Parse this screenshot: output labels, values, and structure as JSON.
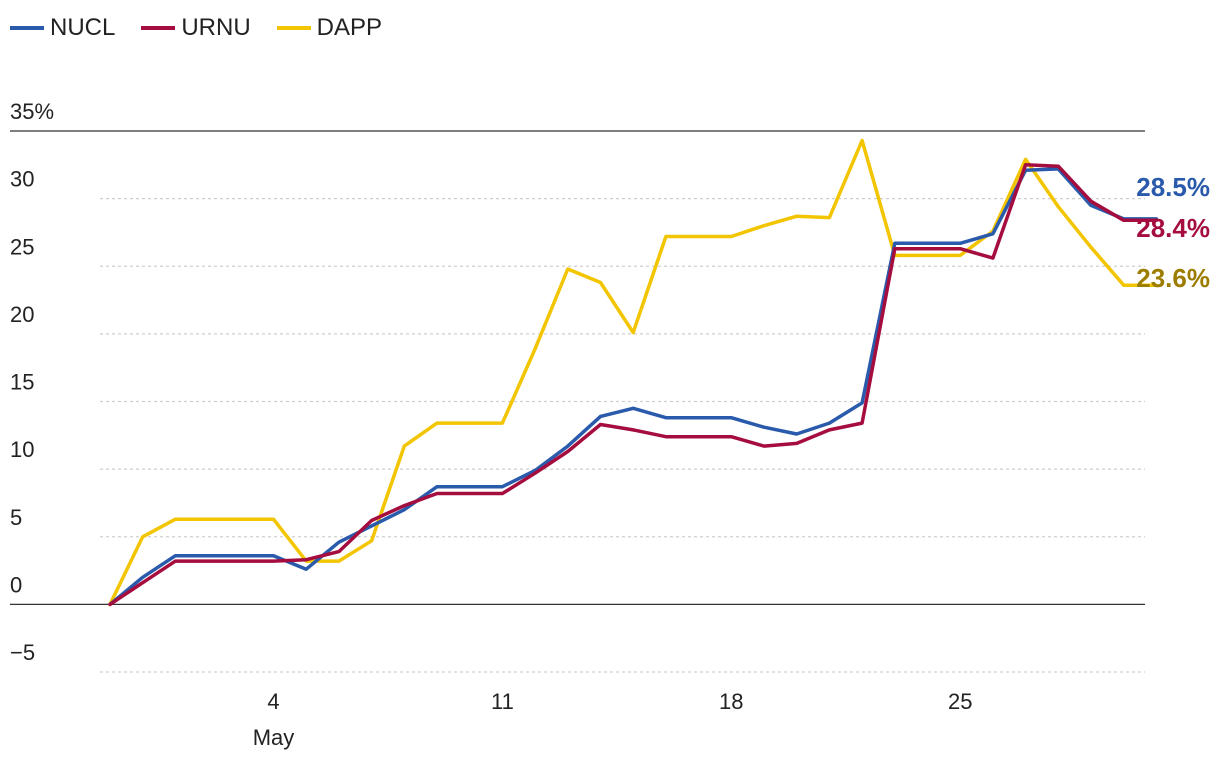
{
  "chart_data": {
    "type": "line",
    "x": [
      "Apr 29",
      "Apr 30",
      "May 1",
      "May 2",
      "May 3",
      "May 4",
      "May 5",
      "May 6",
      "May 7",
      "May 8",
      "May 9",
      "May 10",
      "May 11",
      "May 12",
      "May 13",
      "May 14",
      "May 15",
      "May 16",
      "May 17",
      "May 18",
      "May 19",
      "May 20",
      "May 21",
      "May 22",
      "May 23",
      "May 24",
      "May 25",
      "May 26",
      "May 27",
      "May 28",
      "May 29",
      "May 30",
      "May 31"
    ],
    "x_ticks": [
      {
        "x": "May 4",
        "label": "4",
        "sublabel": "May"
      },
      {
        "x": "May 11",
        "label": "11",
        "sublabel": ""
      },
      {
        "x": "May 18",
        "label": "18",
        "sublabel": ""
      },
      {
        "x": "May 25",
        "label": "25",
        "sublabel": ""
      }
    ],
    "y_ticks": [
      {
        "value": 35,
        "label": "35%"
      },
      {
        "value": 30,
        "label": "30"
      },
      {
        "value": 25,
        "label": "25"
      },
      {
        "value": 20,
        "label": "20"
      },
      {
        "value": 15,
        "label": "15"
      },
      {
        "value": 10,
        "label": "10"
      },
      {
        "value": 5,
        "label": "5"
      },
      {
        "value": 0,
        "label": "0"
      },
      {
        "value": -5,
        "label": "−5"
      }
    ],
    "ylim": [
      -5,
      35
    ],
    "grid": true,
    "legend_position": "top-left",
    "series": [
      {
        "name": "NUCL",
        "color": "#2a5aab",
        "end_label": "28.5%",
        "values": [
          0,
          2.0,
          3.6,
          3.6,
          3.6,
          3.6,
          2.6,
          4.6,
          5.8,
          7.0,
          8.7,
          8.7,
          8.7,
          9.9,
          11.7,
          13.9,
          14.5,
          13.8,
          13.8,
          13.8,
          13.1,
          12.6,
          13.4,
          14.9,
          26.7,
          26.7,
          26.7,
          27.4,
          32.1,
          32.2,
          29.5,
          28.5,
          28.5
        ]
      },
      {
        "name": "URNU",
        "color": "#a50d3f",
        "end_label": "28.4%",
        "values": [
          0,
          1.6,
          3.2,
          3.2,
          3.2,
          3.2,
          3.3,
          3.9,
          6.2,
          7.3,
          8.2,
          8.2,
          8.2,
          9.7,
          11.3,
          13.3,
          12.9,
          12.4,
          12.4,
          12.4,
          11.7,
          11.9,
          12.9,
          13.4,
          26.3,
          26.3,
          26.3,
          25.6,
          32.5,
          32.4,
          29.8,
          28.4,
          28.4
        ]
      },
      {
        "name": "DAPP",
        "color": "#f2c500",
        "end_label": "23.6%",
        "label_color": "#9c7d00",
        "values": [
          0,
          5.0,
          6.3,
          6.3,
          6.3,
          6.3,
          3.2,
          3.2,
          4.7,
          11.7,
          13.4,
          13.4,
          13.4,
          18.9,
          24.8,
          23.8,
          20.1,
          27.2,
          27.2,
          27.2,
          28.0,
          28.7,
          28.6,
          34.3,
          25.8,
          25.8,
          25.8,
          27.6,
          32.9,
          29.4,
          26.4,
          23.6,
          23.6
        ]
      }
    ]
  }
}
